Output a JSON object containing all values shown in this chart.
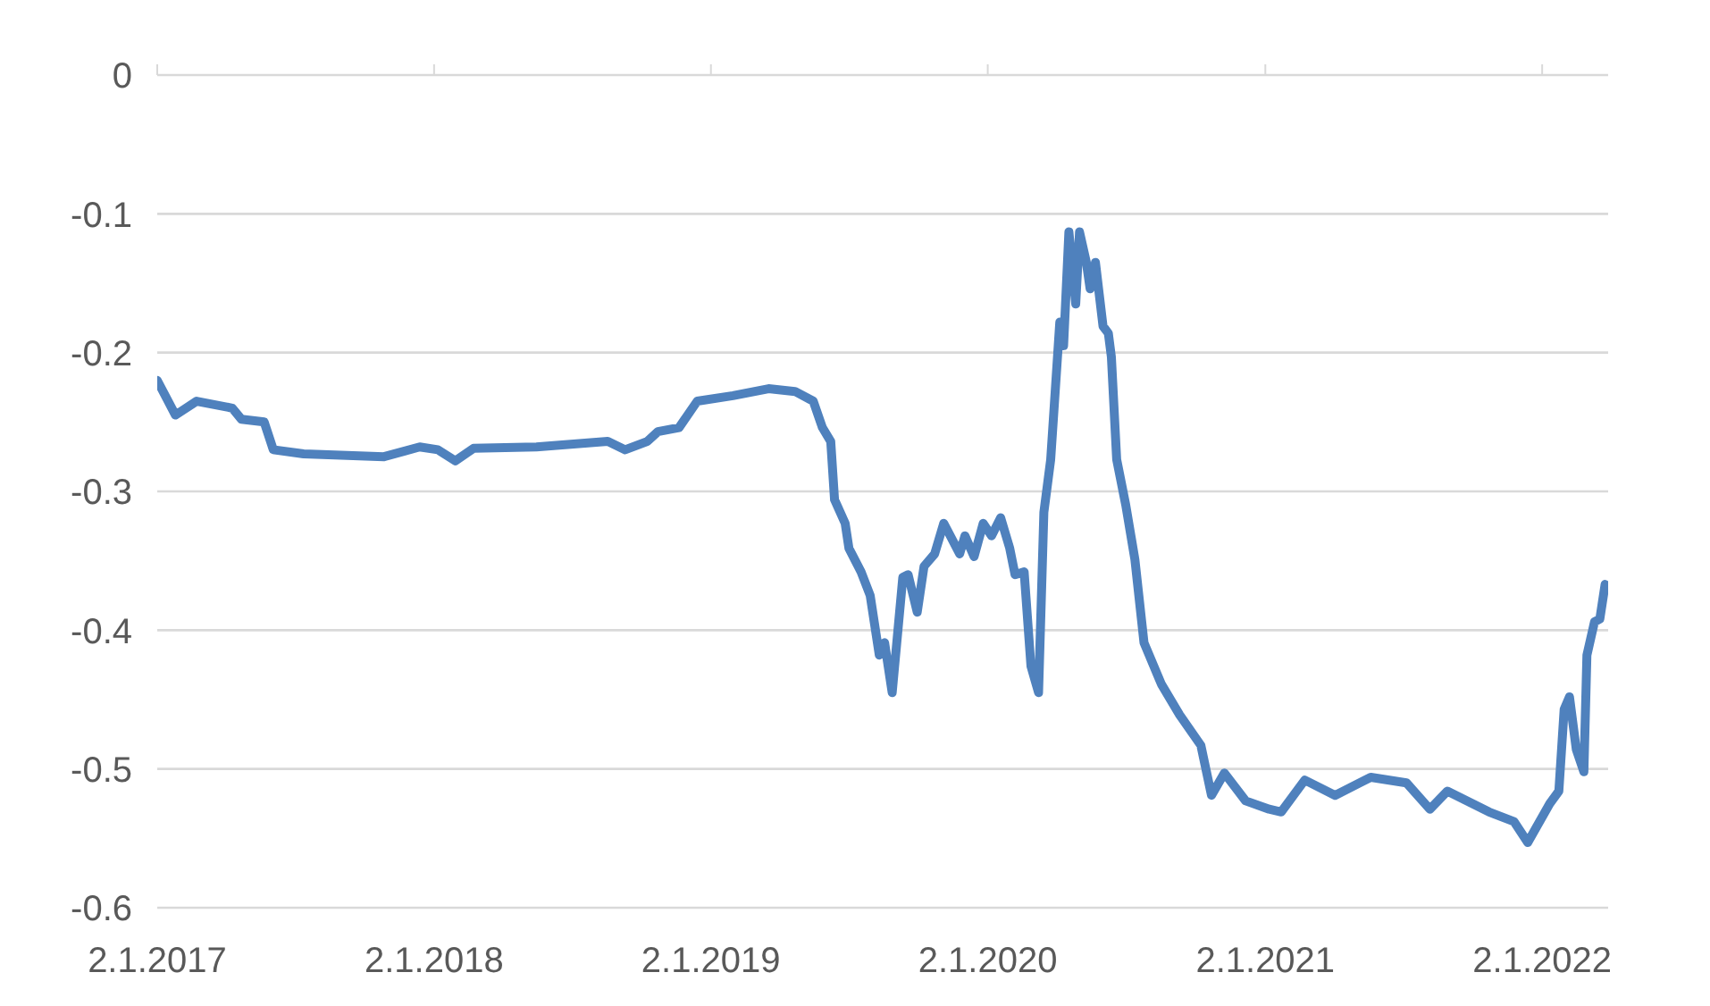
{
  "chart_data": {
    "type": "line",
    "xlim": [
      "2017-01-02",
      "2022-03-30"
    ],
    "ylim": [
      -0.6,
      0
    ],
    "yticks": [
      -0.6,
      -0.5,
      -0.4,
      -0.3,
      -0.2,
      -0.1,
      0
    ],
    "xticks": [
      {
        "value": "2017-01-02",
        "label": "2.1.2017"
      },
      {
        "value": "2018-01-02",
        "label": "2.1.2018"
      },
      {
        "value": "2019-01-02",
        "label": "2.1.2019"
      },
      {
        "value": "2020-01-02",
        "label": "2.1.2020"
      },
      {
        "value": "2021-01-02",
        "label": "2.1.2021"
      },
      {
        "value": "2022-01-02",
        "label": "2.1.2022"
      }
    ],
    "grid": "y",
    "legend": false,
    "marker": "none",
    "line_style": "solid",
    "x": [
      "2017-01-02",
      "2017-01-26",
      "2017-02-23",
      "2017-04-11",
      "2017-04-23",
      "2017-05-23",
      "2017-06-04",
      "2017-07-14",
      "2017-10-28",
      "2017-12-14",
      "2018-01-07",
      "2018-01-30",
      "2018-02-23",
      "2018-05-17",
      "2018-08-19",
      "2018-09-11",
      "2018-10-10",
      "2018-10-24",
      "2018-11-21",
      "2018-12-15",
      "2019-01-31",
      "2019-03-19",
      "2019-04-23",
      "2019-05-17",
      "2019-05-29",
      "2019-06-09",
      "2019-06-14",
      "2019-06-28",
      "2019-07-03",
      "2019-07-19",
      "2019-07-31",
      "2019-08-12",
      "2019-08-19",
      "2019-08-29",
      "2019-09-12",
      "2019-09-19",
      "2019-10-01",
      "2019-10-10",
      "2019-10-24",
      "2019-11-05",
      "2019-11-26",
      "2019-12-03",
      "2019-12-15",
      "2019-12-27",
      "2020-01-07",
      "2020-01-19",
      "2020-01-31",
      "2020-02-07",
      "2020-02-19",
      "2020-02-28",
      "2020-03-09",
      "2020-03-16",
      "2020-03-25",
      "2020-04-06",
      "2020-04-11",
      "2020-04-18",
      "2020-04-27",
      "2020-05-02",
      "2020-05-11",
      "2020-05-16",
      "2020-05-23",
      "2020-06-02",
      "2020-06-09",
      "2020-06-13",
      "2020-06-20",
      "2020-07-02",
      "2020-07-14",
      "2020-07-26",
      "2020-08-18",
      "2020-09-11",
      "2020-10-09",
      "2020-10-23",
      "2020-11-09",
      "2020-12-07",
      "2021-01-07",
      "2021-01-23",
      "2021-02-23",
      "2021-04-04",
      "2021-05-21",
      "2021-07-07",
      "2021-08-07",
      "2021-08-30",
      "2021-10-24",
      "2021-11-26",
      "2021-12-14",
      "2022-01-12",
      "2022-01-24",
      "2022-01-31",
      "2022-02-07",
      "2022-02-16",
      "2022-02-26",
      "2022-03-02",
      "2022-03-12",
      "2022-03-19",
      "2022-03-26"
    ],
    "series": [
      {
        "color": "#4f81bd",
        "values": [
          -0.22,
          -0.245,
          -0.235,
          -0.24,
          -0.248,
          -0.25,
          -0.27,
          -0.273,
          -0.275,
          -0.268,
          -0.27,
          -0.278,
          -0.269,
          -0.268,
          -0.264,
          -0.27,
          -0.264,
          -0.257,
          -0.254,
          -0.235,
          -0.231,
          -0.226,
          -0.228,
          -0.235,
          -0.254,
          -0.264,
          -0.306,
          -0.323,
          -0.341,
          -0.358,
          -0.375,
          -0.418,
          -0.409,
          -0.445,
          -0.362,
          -0.36,
          -0.387,
          -0.354,
          -0.345,
          -0.323,
          -0.345,
          -0.332,
          -0.347,
          -0.323,
          -0.332,
          -0.319,
          -0.341,
          -0.36,
          -0.358,
          -0.426,
          -0.445,
          -0.315,
          -0.277,
          -0.178,
          -0.195,
          -0.113,
          -0.165,
          -0.113,
          -0.135,
          -0.154,
          -0.135,
          -0.181,
          -0.186,
          -0.203,
          -0.277,
          -0.31,
          -0.349,
          -0.409,
          -0.439,
          -0.461,
          -0.483,
          -0.519,
          -0.503,
          -0.523,
          -0.529,
          -0.531,
          -0.508,
          -0.519,
          -0.506,
          -0.51,
          -0.529,
          -0.516,
          -0.531,
          -0.538,
          -0.553,
          -0.525,
          -0.516,
          -0.457,
          -0.448,
          -0.486,
          -0.502,
          -0.418,
          -0.394,
          -0.392,
          -0.367
        ]
      }
    ]
  }
}
